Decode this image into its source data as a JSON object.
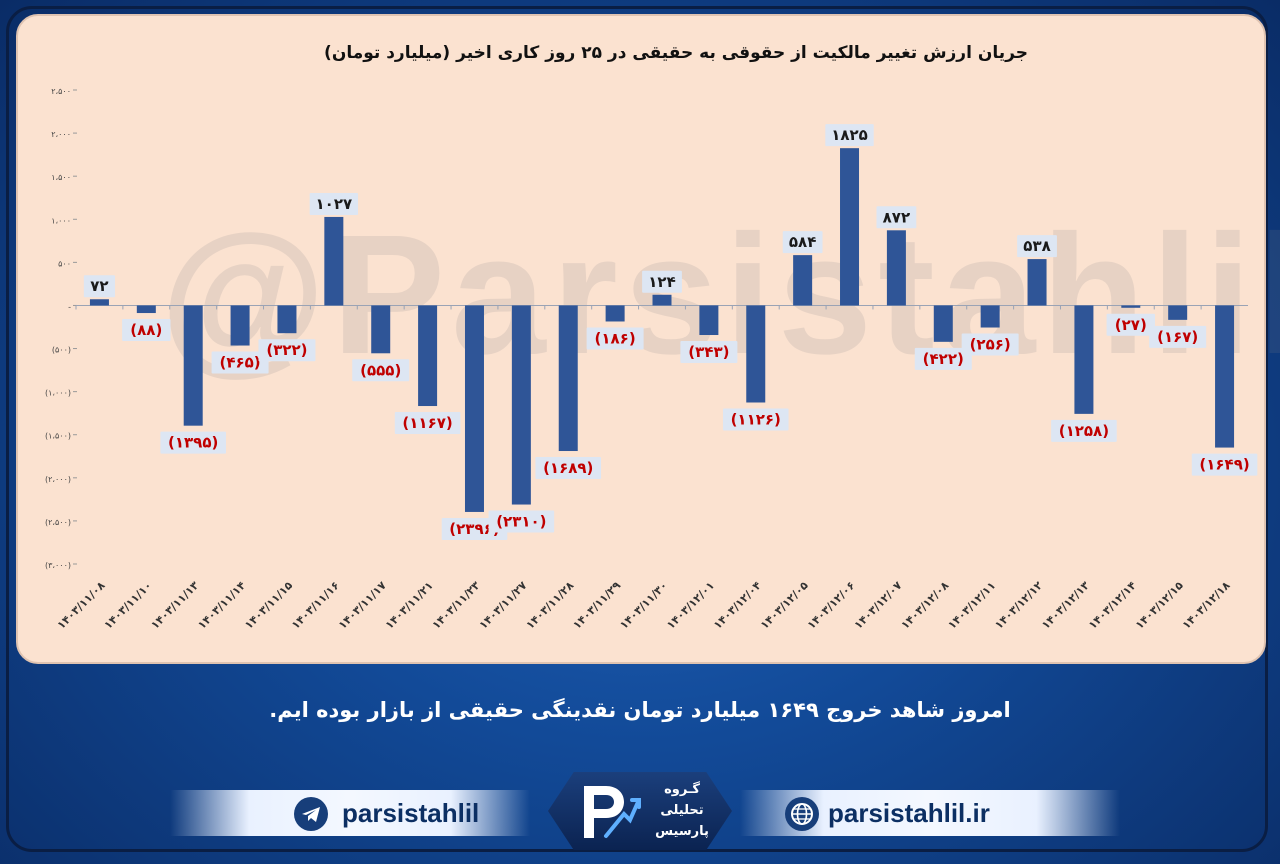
{
  "chart_data": {
    "type": "bar",
    "title": "جریان ارزش تغییر مالکیت از حقوقی به حقیقی در ۲۵ روز کاری اخیر (میلیارد تومان)",
    "categories": [
      "۱۴۰۳/۱۱/۰۸",
      "۱۴۰۳/۱۱/۱۰",
      "۱۴۰۳/۱۱/۱۳",
      "۱۴۰۳/۱۱/۱۴",
      "۱۴۰۳/۱۱/۱۵",
      "۱۴۰۳/۱۱/۱۶",
      "۱۴۰۳/۱۱/۱۷",
      "۱۴۰۳/۱۱/۲۱",
      "۱۴۰۳/۱۱/۲۳",
      "۱۴۰۳/۱۱/۲۷",
      "۱۴۰۳/۱۱/۲۸",
      "۱۴۰۳/۱۱/۲۹",
      "۱۴۰۳/۱۱/۳۰",
      "۱۴۰۳/۱۲/۰۱",
      "۱۴۰۳/۱۲/۰۴",
      "۱۴۰۳/۱۲/۰۵",
      "۱۴۰۳/۱۲/۰۶",
      "۱۴۰۳/۱۲/۰۷",
      "۱۴۰۳/۱۲/۰۸",
      "۱۴۰۳/۱۲/۱۱",
      "۱۴۰۳/۱۲/۱۲",
      "۱۴۰۳/۱۲/۱۳",
      "۱۴۰۳/۱۲/۱۴",
      "۱۴۰۳/۱۲/۱۵",
      "۱۴۰۳/۱۲/۱۸"
    ],
    "values": [
      72,
      -88,
      -1395,
      -465,
      -322,
      1027,
      -555,
      -1167,
      -2396,
      -2310,
      -1689,
      -186,
      124,
      -343,
      -1126,
      584,
      1825,
      872,
      -422,
      -256,
      538,
      -1258,
      -27,
      -167,
      -1649
    ],
    "data_labels": [
      "۷۲",
      "(۸۸)",
      "(۱۳۹۵)",
      "(۴۶۵)",
      "(۳۲۲)",
      "۱۰۲۷",
      "(۵۵۵)",
      "(۱۱۶۷)",
      "(۲۳۹۶)",
      "(۲۳۱۰)",
      "(۱۶۸۹)",
      "(۱۸۶)",
      "۱۲۴",
      "(۳۴۳)",
      "(۱۱۲۶)",
      "۵۸۴",
      "۱۸۲۵",
      "۸۷۲",
      "(۴۲۲)",
      "(۲۵۶)",
      "۵۳۸",
      "(۱۲۵۸)",
      "(۲۷)",
      "(۱۶۷)",
      "(۱۶۴۹)"
    ],
    "ylim": [
      -3000,
      2500
    ],
    "yticks": [
      2500,
      2000,
      1500,
      1000,
      500,
      0,
      -500,
      -1000,
      -1500,
      -2000,
      -2500,
      -3000
    ],
    "ytick_labels": [
      "۲،۵۰۰",
      "۲،۰۰۰",
      "۱،۵۰۰",
      "۱،۰۰۰",
      "۵۰۰",
      "-",
      "(۵۰۰)",
      "(۱،۰۰۰)",
      "(۱،۵۰۰)",
      "(۲،۰۰۰)",
      "(۲،۵۰۰)",
      "(۳،۰۰۰)"
    ],
    "grid": false,
    "bar_color": "#2f5597",
    "positive_label_color": "#1a1a1a",
    "negative_label_color": "#c00000",
    "label_box_color": "#dde6f3"
  },
  "watermark": "@Parsistahlil",
  "caption": "امروز شاهد خروج ۱۶۴۹ میلیارد تومان نقدینگی حقیقی از بازار بوده ایم.",
  "footer": {
    "telegram_handle": "parsistahlil",
    "website": "parsistahlil.ir",
    "logo_line1": "گـروه",
    "logo_line2": "تحلیلی",
    "logo_line3": "پارسیس"
  },
  "icons": {
    "left": "telegram-icon",
    "right": "globe-icon",
    "center": "parsis-logo-icon"
  }
}
